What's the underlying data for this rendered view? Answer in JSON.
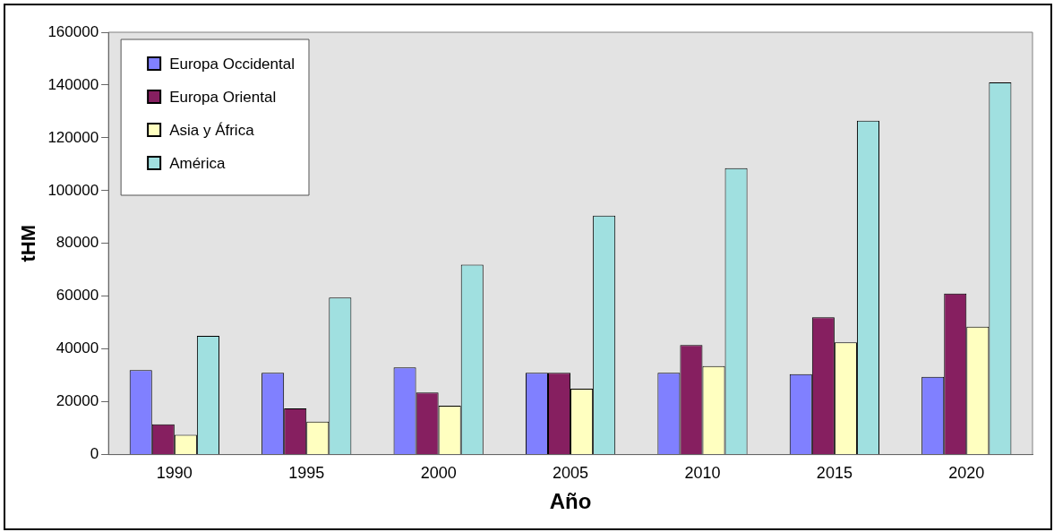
{
  "chart_data": {
    "type": "bar",
    "xlabel": "Año",
    "ylabel": "tHM",
    "categories": [
      "1990",
      "1995",
      "2000",
      "2005",
      "2010",
      "2015",
      "2020"
    ],
    "series": [
      {
        "name": "Europa Occidental",
        "color": "#8080ff",
        "values": [
          32000,
          31000,
          33000,
          31000,
          31000,
          30500,
          29500
        ]
      },
      {
        "name": "Europa Oriental",
        "color": "#861f60",
        "values": [
          11500,
          17500,
          23500,
          31000,
          41500,
          52000,
          61000
        ]
      },
      {
        "name": "Asia y África",
        "color": "#ffffc0",
        "values": [
          7500,
          12500,
          18500,
          25000,
          33500,
          42500,
          48500
        ]
      },
      {
        "name": "América",
        "color": "#a0e0e0",
        "values": [
          45000,
          59500,
          72000,
          90500,
          108500,
          126500,
          141000
        ]
      }
    ],
    "ylim": [
      0,
      160000
    ],
    "yticks": [
      0,
      20000,
      40000,
      60000,
      80000,
      100000,
      120000,
      140000,
      160000
    ],
    "grid": false,
    "legend": "top left"
  }
}
